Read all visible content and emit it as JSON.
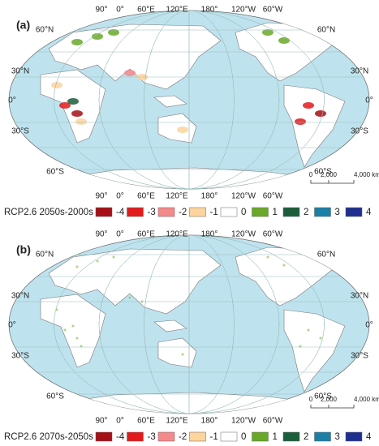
{
  "panels": [
    {
      "label": "(a)",
      "legend_title": "RCP2.6 2050s-2000s"
    },
    {
      "label": "(b)",
      "legend_title": "RCP2.6 2070s-2050s"
    }
  ],
  "graticule": {
    "longitudes": [
      "90°",
      "0°",
      "60°E",
      "120°E",
      "180°",
      "120°W",
      "60°W"
    ],
    "left_latitudes": [
      "60°N",
      "30°N",
      "0°",
      "30°S",
      "60°S"
    ],
    "right_latitudes": [
      "60°N",
      "30°N",
      "0°",
      "30°S",
      "60°S"
    ]
  },
  "scale_bar": [
    "0",
    "2,000",
    "4,000 km"
  ],
  "legend": [
    {
      "label": "-4",
      "color": "#a50f15"
    },
    {
      "label": "-3",
      "color": "#e31a1c"
    },
    {
      "label": "-2",
      "color": "#f4898b"
    },
    {
      "label": "-1",
      "color": "#fdd49e"
    },
    {
      "label": "0",
      "color": "#ffffff"
    },
    {
      "label": "1",
      "color": "#6aa82a"
    },
    {
      "label": "2",
      "color": "#1b5e3b"
    },
    {
      "label": "3",
      "color": "#1c7fa6"
    },
    {
      "label": "4",
      "color": "#1f2f8f"
    }
  ]
}
